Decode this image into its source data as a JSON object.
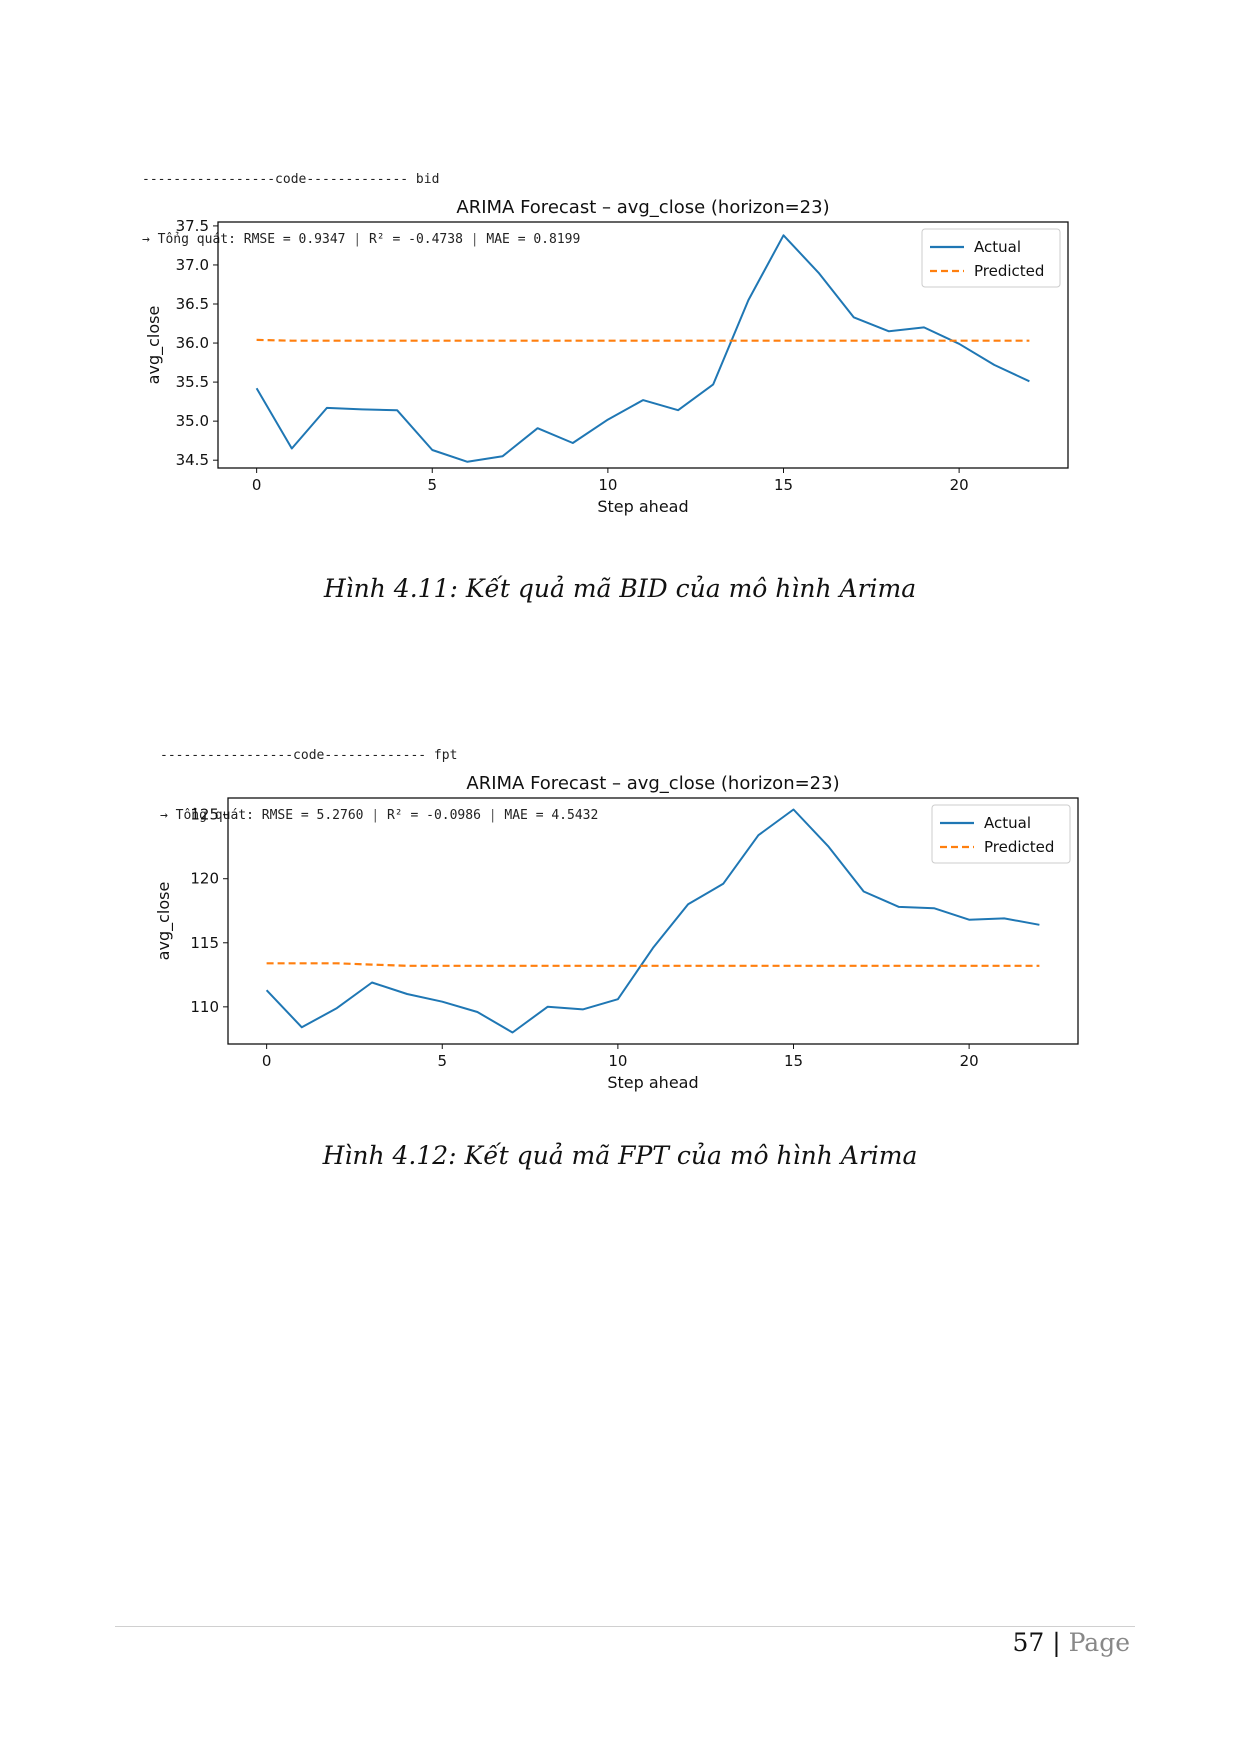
{
  "figures": [
    {
      "code_line": "-----------------code------------- bid",
      "metrics_prefix": "→ Tổng quát: RMSE = 0.9347",
      "metrics_r2": "R² = -0.4738",
      "metrics_mae": "MAE = 0.8199",
      "caption": "Hình 4.11: Kết quả mã BID của mô hình Arima"
    },
    {
      "code_line": "-----------------code------------- fpt",
      "metrics_prefix": "→ Tổng quát: RMSE = 5.2760",
      "metrics_r2": "R² = -0.0986",
      "metrics_mae": "MAE = 4.5432",
      "caption": "Hình 4.12: Kết quả mã FPT của mô hình Arima"
    }
  ],
  "chart_data": [
    {
      "type": "line",
      "title": "ARIMA Forecast – avg_close (horizon=23)",
      "xlabel": "Step ahead",
      "ylabel": "avg_close",
      "x": [
        0,
        1,
        2,
        3,
        4,
        5,
        6,
        7,
        8,
        9,
        10,
        11,
        12,
        13,
        14,
        15,
        16,
        17,
        18,
        19,
        20,
        21,
        22
      ],
      "xlim": [
        -1.1,
        23.1
      ],
      "ylim": [
        34.4,
        37.55
      ],
      "xticks": [
        0,
        5,
        10,
        15,
        20
      ],
      "yticks": [
        34.5,
        35.0,
        35.5,
        36.0,
        36.5,
        37.0,
        37.5
      ],
      "ytick_labels": [
        "34.5",
        "35.0",
        "35.5",
        "36.0",
        "36.5",
        "37.0",
        "37.5"
      ],
      "legend_position": "upper-right",
      "series": [
        {
          "name": "Actual",
          "color": "#1f77b4",
          "style": "solid",
          "values": [
            35.42,
            34.65,
            35.17,
            35.15,
            35.14,
            34.63,
            34.48,
            34.55,
            34.91,
            34.72,
            35.02,
            35.27,
            35.14,
            35.47,
            36.55,
            37.38,
            36.9,
            36.33,
            36.15,
            36.2,
            35.99,
            35.72,
            35.51
          ]
        },
        {
          "name": "Predicted",
          "color": "#ff7f0e",
          "style": "dashed",
          "values": [
            36.04,
            36.03,
            36.03,
            36.03,
            36.03,
            36.03,
            36.03,
            36.03,
            36.03,
            36.03,
            36.03,
            36.03,
            36.03,
            36.03,
            36.03,
            36.03,
            36.03,
            36.03,
            36.03,
            36.03,
            36.03,
            36.03,
            36.03
          ]
        }
      ]
    },
    {
      "type": "line",
      "title": "ARIMA Forecast – avg_close (horizon=23)",
      "xlabel": "Step ahead",
      "ylabel": "avg_close",
      "x": [
        0,
        1,
        2,
        3,
        4,
        5,
        6,
        7,
        8,
        9,
        10,
        11,
        12,
        13,
        14,
        15,
        16,
        17,
        18,
        19,
        20,
        21,
        22
      ],
      "xlim": [
        -1.1,
        23.1
      ],
      "ylim": [
        107.1,
        126.3
      ],
      "xticks": [
        0,
        5,
        10,
        15,
        20
      ],
      "yticks": [
        110,
        115,
        120,
        125
      ],
      "ytick_labels": [
        "110",
        "115",
        "120",
        "125"
      ],
      "legend_position": "upper-right",
      "series": [
        {
          "name": "Actual",
          "color": "#1f77b4",
          "style": "solid",
          "values": [
            111.3,
            108.4,
            109.9,
            111.9,
            111.0,
            110.4,
            109.6,
            108.0,
            110.0,
            109.8,
            110.6,
            114.6,
            118.0,
            119.6,
            123.4,
            125.4,
            122.5,
            119.0,
            117.8,
            117.7,
            116.8,
            116.9,
            116.4
          ]
        },
        {
          "name": "Predicted",
          "color": "#ff7f0e",
          "style": "dashed",
          "values": [
            113.4,
            113.4,
            113.4,
            113.3,
            113.2,
            113.2,
            113.2,
            113.2,
            113.2,
            113.2,
            113.2,
            113.2,
            113.2,
            113.2,
            113.2,
            113.2,
            113.2,
            113.2,
            113.2,
            113.2,
            113.2,
            113.2,
            113.2
          ]
        }
      ]
    }
  ],
  "footer": {
    "page_number": "57",
    "separator": "|",
    "page_word": "Page"
  }
}
